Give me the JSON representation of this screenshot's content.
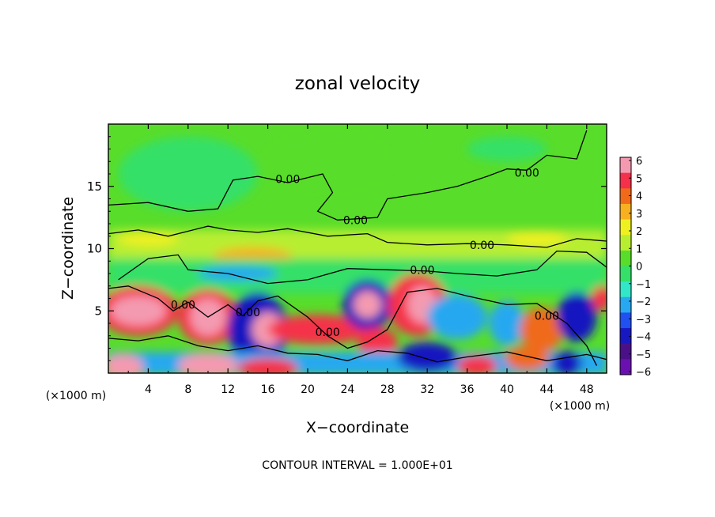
{
  "chart_data": {
    "type": "heatmap",
    "title": "zonal velocity",
    "xlabel": "X−coordinate",
    "ylabel": "Z−coordinate",
    "x_unit_left": "(×1000 m)",
    "x_unit_right": "(×1000 m)",
    "xlim": [
      0,
      50
    ],
    "ylim": [
      0,
      20
    ],
    "x_ticks": [
      4,
      8,
      12,
      16,
      20,
      24,
      28,
      32,
      36,
      40,
      44,
      48
    ],
    "y_ticks": [
      5,
      10,
      15
    ],
    "colorbar": {
      "ticks": [
        6,
        5,
        4,
        3,
        2,
        1,
        0,
        -1,
        -2,
        -3,
        -4,
        -5,
        -6
      ],
      "labels": [
        "6",
        "5",
        "4",
        "3",
        "2",
        "1",
        "0",
        "−1",
        "−2",
        "−3",
        "−4",
        "−5",
        "−6"
      ],
      "colors": [
        "#f49ab0",
        "#f5304a",
        "#f06a1a",
        "#f7b020",
        "#eef020",
        "#b8ee30",
        "#58dd2a",
        "#34e068",
        "#32e6c8",
        "#28a8f0",
        "#2050f0",
        "#1818c0",
        "#4a1088",
        "#6a10b0"
      ]
    },
    "contour_labels": [
      {
        "text": "0.00",
        "x": 18.0,
        "z": 15.6
      },
      {
        "text": "0.00",
        "x": 24.8,
        "z": 12.3
      },
      {
        "text": "0.00",
        "x": 42.0,
        "z": 16.1
      },
      {
        "text": "0.00",
        "x": 37.5,
        "z": 10.3
      },
      {
        "text": "0.00",
        "x": 31.5,
        "z": 8.3
      },
      {
        "text": "0.00",
        "x": 7.5,
        "z": 5.5
      },
      {
        "text": "0.00",
        "x": 14.0,
        "z": 4.9
      },
      {
        "text": "0.00",
        "x": 22.0,
        "z": 3.3
      },
      {
        "text": "0.00",
        "x": 44.0,
        "z": 4.6
      }
    ],
    "footer": "CONTOUR INTERVAL = 1.000E+01",
    "field_regions": [
      {
        "type": "ellipse",
        "x": 8,
        "z": 16,
        "rx": 7,
        "ry": 3,
        "value": -1.6
      },
      {
        "type": "ellipse",
        "x": 22,
        "z": 17,
        "rx": 6,
        "ry": 2,
        "value": -0.8
      },
      {
        "type": "ellipse",
        "x": 40,
        "z": 18,
        "rx": 4,
        "ry": 1,
        "value": -1.2
      },
      {
        "type": "band",
        "x": 25,
        "z": 10.3,
        "rx": 25,
        "ry": 1.2,
        "value": 1.0
      },
      {
        "type": "ellipse",
        "x": 4,
        "z": 10.8,
        "rx": 3,
        "ry": 0.6,
        "value": 1.6
      },
      {
        "type": "ellipse",
        "x": 14.5,
        "z": 9.3,
        "rx": 4,
        "ry": 0.8,
        "value": 2.8
      },
      {
        "type": "ellipse",
        "x": 43,
        "z": 10.8,
        "rx": 3,
        "ry": 0.6,
        "value": 1.4
      },
      {
        "type": "band",
        "x": 25,
        "z": 7.8,
        "rx": 25,
        "ry": 1.4,
        "value": -1.5
      },
      {
        "type": "ellipse",
        "x": 13,
        "z": 8.0,
        "rx": 4,
        "ry": 0.6,
        "value": -3.2
      },
      {
        "type": "ellipse",
        "x": 3,
        "z": 5.0,
        "rx": 4,
        "ry": 2,
        "value": 5.0
      },
      {
        "type": "ellipse",
        "x": 3,
        "z": 5.0,
        "rx": 2.8,
        "ry": 1.2,
        "value": 6.5
      },
      {
        "type": "ellipse",
        "x": 10,
        "z": 4.5,
        "rx": 3,
        "ry": 2.2,
        "value": 5.0
      },
      {
        "type": "ellipse",
        "x": 10,
        "z": 4.5,
        "rx": 1.8,
        "ry": 1.5,
        "value": 6.5
      },
      {
        "type": "ellipse",
        "x": 15,
        "z": 3.5,
        "rx": 3,
        "ry": 3,
        "value": -5.0
      },
      {
        "type": "ellipse",
        "x": 16,
        "z": 3.5,
        "rx": 1.6,
        "ry": 1.4,
        "value": 6.5
      },
      {
        "type": "ellipse",
        "x": 21,
        "z": 3.5,
        "rx": 5,
        "ry": 1.2,
        "value": 4.5
      },
      {
        "type": "ellipse",
        "x": 26,
        "z": 5.5,
        "rx": 2.5,
        "ry": 2,
        "value": -5.5
      },
      {
        "type": "ellipse",
        "x": 26,
        "z": 5.5,
        "rx": 1.4,
        "ry": 1.1,
        "value": 6.5
      },
      {
        "type": "ellipse",
        "x": 31,
        "z": 5.5,
        "rx": 3,
        "ry": 2.5,
        "value": 5.0
      },
      {
        "type": "ellipse",
        "x": 31.5,
        "z": 5.5,
        "rx": 1.5,
        "ry": 1.5,
        "value": 6.5
      },
      {
        "type": "ellipse",
        "x": 27,
        "z": 2.5,
        "rx": 2,
        "ry": 1.2,
        "value": 4.5
      },
      {
        "type": "ellipse",
        "x": 35,
        "z": 4.5,
        "rx": 3,
        "ry": 1.8,
        "value": -3.5
      },
      {
        "type": "ellipse",
        "x": 40,
        "z": 4.0,
        "rx": 1.8,
        "ry": 1.8,
        "value": -3.0
      },
      {
        "type": "ellipse",
        "x": 43.5,
        "z": 3.5,
        "rx": 2.2,
        "ry": 1.8,
        "value": 4.0
      },
      {
        "type": "ellipse",
        "x": 47,
        "z": 4.5,
        "rx": 2,
        "ry": 2,
        "value": -5.0
      },
      {
        "type": "ellipse",
        "x": 49.5,
        "z": 6.0,
        "rx": 1.0,
        "ry": 1.0,
        "value": 4.5
      },
      {
        "type": "band",
        "x": 25,
        "z": 0.8,
        "rx": 25,
        "ry": 0.9,
        "value": -3.5
      },
      {
        "type": "ellipse",
        "x": 1.5,
        "z": 0.5,
        "rx": 2,
        "ry": 1,
        "value": 6.5
      },
      {
        "type": "ellipse",
        "x": 10,
        "z": 0.6,
        "rx": 3,
        "ry": 1,
        "value": 6.5
      },
      {
        "type": "ellipse",
        "x": 16,
        "z": 0.4,
        "rx": 3,
        "ry": 0.8,
        "value": 5.0
      },
      {
        "type": "ellipse",
        "x": 32,
        "z": 1.3,
        "rx": 3,
        "ry": 1.2,
        "value": -5.0
      },
      {
        "type": "ellipse",
        "x": 37,
        "z": 0.6,
        "rx": 2,
        "ry": 0.8,
        "value": 4.5
      },
      {
        "type": "ellipse",
        "x": 42,
        "z": 1.2,
        "rx": 2.2,
        "ry": 1,
        "value": 4.0
      },
      {
        "type": "ellipse",
        "x": 46,
        "z": 0.8,
        "rx": 1.5,
        "ry": 1,
        "value": -5.5
      }
    ],
    "contour_lines": [
      [
        [
          0,
          13.5
        ],
        [
          4,
          13.7
        ],
        [
          8,
          13.0
        ],
        [
          11,
          13.2
        ],
        [
          12.5,
          15.5
        ],
        [
          15,
          15.8
        ],
        [
          18,
          15.3
        ],
        [
          21.5,
          16.0
        ],
        [
          22.5,
          14.5
        ],
        [
          21,
          13.0
        ],
        [
          23,
          12.3
        ],
        [
          27,
          12.5
        ],
        [
          28,
          14.0
        ],
        [
          32,
          14.5
        ],
        [
          35,
          15.0
        ],
        [
          38,
          15.8
        ],
        [
          40,
          16.4
        ],
        [
          42,
          16.3
        ],
        [
          44,
          17.5
        ],
        [
          47,
          17.2
        ],
        [
          48,
          19.5
        ]
      ],
      [
        [
          0,
          11.2
        ],
        [
          3,
          11.5
        ],
        [
          6,
          11.0
        ],
        [
          10,
          11.8
        ],
        [
          12,
          11.5
        ],
        [
          15,
          11.3
        ],
        [
          18,
          11.6
        ],
        [
          22,
          11.0
        ],
        [
          26,
          11.2
        ],
        [
          28,
          10.5
        ],
        [
          32,
          10.3
        ],
        [
          36,
          10.4
        ],
        [
          40,
          10.3
        ],
        [
          44,
          10.1
        ],
        [
          47,
          10.8
        ],
        [
          50,
          10.6
        ]
      ],
      [
        [
          1,
          7.5
        ],
        [
          4,
          9.2
        ],
        [
          7,
          9.5
        ],
        [
          8,
          8.3
        ],
        [
          12,
          8.0
        ],
        [
          16,
          7.2
        ],
        [
          20,
          7.5
        ],
        [
          24,
          8.4
        ],
        [
          28,
          8.3
        ],
        [
          32,
          8.2
        ],
        [
          35,
          8.0
        ],
        [
          39,
          7.8
        ],
        [
          43,
          8.3
        ],
        [
          45,
          9.8
        ],
        [
          48,
          9.7
        ],
        [
          50,
          8.5
        ]
      ],
      [
        [
          0,
          6.8
        ],
        [
          2,
          7.0
        ],
        [
          5,
          6.0
        ],
        [
          6.5,
          5.0
        ],
        [
          8,
          5.7
        ],
        [
          10,
          4.5
        ],
        [
          12,
          5.5
        ],
        [
          13.5,
          4.6
        ],
        [
          15,
          5.8
        ],
        [
          17,
          6.2
        ],
        [
          20,
          4.5
        ],
        [
          22,
          3.0
        ],
        [
          24,
          2.0
        ],
        [
          26,
          2.5
        ],
        [
          28,
          3.5
        ],
        [
          30,
          6.5
        ],
        [
          33,
          6.8
        ],
        [
          36,
          6.2
        ],
        [
          40,
          5.5
        ],
        [
          43,
          5.6
        ],
        [
          46,
          4.0
        ],
        [
          48,
          2.2
        ],
        [
          49,
          0.6
        ]
      ],
      [
        [
          0,
          2.8
        ],
        [
          3,
          2.6
        ],
        [
          6,
          3.0
        ],
        [
          9,
          2.2
        ],
        [
          12,
          1.8
        ],
        [
          15,
          2.2
        ],
        [
          18,
          1.6
        ],
        [
          21,
          1.5
        ],
        [
          24,
          1.0
        ],
        [
          27,
          1.8
        ],
        [
          30,
          1.6
        ],
        [
          33,
          0.9
        ],
        [
          36,
          1.3
        ],
        [
          40,
          1.7
        ],
        [
          44,
          1.0
        ],
        [
          48,
          1.5
        ],
        [
          50,
          1.1
        ]
      ]
    ]
  }
}
